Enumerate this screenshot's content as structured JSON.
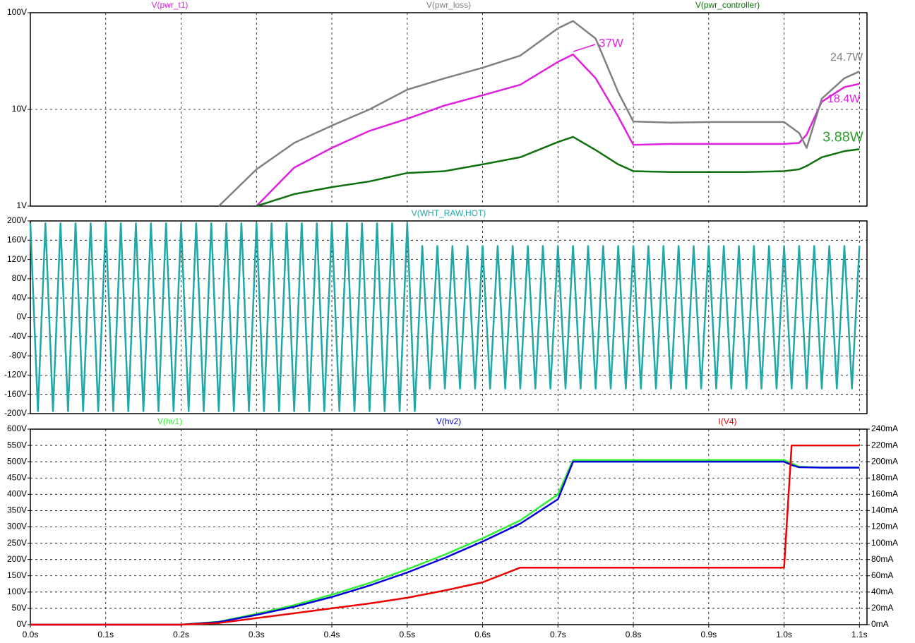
{
  "chart_data": [
    {
      "type": "line",
      "log_y": true,
      "grid": true,
      "x": [
        0.25,
        0.3,
        0.35,
        0.4,
        0.45,
        0.5,
        0.55,
        0.6,
        0.65,
        0.7,
        0.72,
        0.75,
        0.78,
        0.8,
        0.85,
        0.9,
        0.95,
        1.0,
        1.02,
        1.03,
        1.05,
        1.08,
        1.1
      ],
      "series": [
        {
          "name": "V(pwr_t1)",
          "color": "#e020e0",
          "values": [
            null,
            1,
            2.5,
            4,
            6,
            8,
            11,
            14,
            18,
            31,
            37,
            21,
            8.4,
            4.3,
            4.4,
            4.4,
            4.4,
            4.4,
            4.5,
            5.5,
            12,
            17,
            18.4
          ]
        },
        {
          "name": "V(pwr_loss)",
          "color": "#808080",
          "values": [
            1,
            2.4,
            4.5,
            6.8,
            10,
            16,
            21,
            27,
            36,
            69,
            82,
            54,
            15,
            7.5,
            7.3,
            7.4,
            7.4,
            7.4,
            5.7,
            4,
            12.9,
            21,
            24.7
          ]
        },
        {
          "name": "V(pwr_controller)",
          "color": "#107010",
          "values": [
            null,
            1,
            1.33,
            1.57,
            1.8,
            2.2,
            2.3,
            2.7,
            3.2,
            4.6,
            5.2,
            3.8,
            2.7,
            2.3,
            2.25,
            2.25,
            2.25,
            2.3,
            2.4,
            2.6,
            3.2,
            3.7,
            3.88
          ]
        }
      ],
      "xlim": [
        0,
        1.11
      ],
      "ylim": [
        1,
        100
      ],
      "yticks": [
        {
          "value": 1,
          "label": "1V"
        },
        {
          "value": 10,
          "label": "10V"
        },
        {
          "value": 100,
          "label": "100V"
        }
      ],
      "annotations": [
        {
          "text": "37W",
          "color": "#e020e0"
        },
        {
          "text": "24.7W",
          "color": "#808080"
        },
        {
          "text": "18.4W",
          "color": "#e020e0"
        },
        {
          "text": "3.88W",
          "color": "#30a030"
        }
      ]
    },
    {
      "type": "line",
      "grid": true,
      "x": [
        0,
        0.01,
        0.02,
        0.03,
        0.04,
        0.05,
        0.06,
        0.07,
        0.08,
        0.09,
        0.1,
        0.11,
        0.12,
        0.13,
        0.14,
        0.15,
        0.16,
        0.17,
        0.18,
        0.19,
        0.2,
        0.21,
        0.22,
        0.23,
        0.24,
        0.25,
        0.26,
        0.27,
        0.28,
        0.29,
        0.3,
        0.31,
        0.32,
        0.33,
        0.34,
        0.35,
        0.36,
        0.37,
        0.38,
        0.39,
        0.4,
        0.41,
        0.42,
        0.43,
        0.44,
        0.45,
        0.46,
        0.47,
        0.48,
        0.49,
        0.5,
        0.51,
        0.52,
        0.53,
        0.54,
        0.55,
        0.56,
        0.57,
        0.58,
        0.59,
        0.6,
        0.61,
        0.62,
        0.63,
        0.64,
        0.65,
        0.66,
        0.67,
        0.68,
        0.69,
        0.7,
        0.71,
        0.72,
        0.73,
        0.74,
        0.75,
        0.76,
        0.77,
        0.78,
        0.79,
        0.8,
        0.81,
        0.82,
        0.83,
        0.84,
        0.85,
        0.86,
        0.87,
        0.88,
        0.89,
        0.9,
        0.91,
        0.92,
        0.93,
        0.94,
        0.95,
        0.96,
        0.97,
        0.98,
        0.99,
        1.0,
        1.01,
        1.02,
        1.03,
        1.04,
        1.05,
        1.06,
        1.07,
        1.08,
        1.09,
        1.1
      ],
      "series": [
        {
          "name": "V(WHT_RAW,HOT)",
          "color": "#20a8a8",
          "values": [
            195,
            -195,
            195,
            -195,
            195,
            -195,
            195,
            -195,
            195,
            -195,
            195,
            -195,
            195,
            -195,
            195,
            -195,
            195,
            -195,
            195,
            -195,
            195,
            -195,
            195,
            -195,
            195,
            -195,
            195,
            -195,
            195,
            -195,
            195,
            -195,
            195,
            -195,
            195,
            -195,
            195,
            -195,
            195,
            -195,
            195,
            -195,
            195,
            -195,
            195,
            -195,
            195,
            -195,
            195,
            -195,
            195,
            -195,
            148,
            -148,
            148,
            -148,
            148,
            -148,
            148,
            -148,
            148,
            -148,
            148,
            -148,
            148,
            -148,
            148,
            -148,
            148,
            -148,
            148,
            -148,
            148,
            -148,
            148,
            -148,
            148,
            -148,
            148,
            -148,
            148,
            -148,
            148,
            -148,
            148,
            -148,
            148,
            -148,
            148,
            -148,
            148,
            -148,
            148,
            -148,
            148,
            -148,
            148,
            -148,
            148,
            -148,
            148,
            -148,
            148,
            -148,
            148,
            -148,
            148,
            -148,
            148,
            -148,
            148
          ]
        }
      ],
      "xlim": [
        0,
        1.11
      ],
      "ylim": [
        -200,
        200
      ],
      "yticks": [
        {
          "value": -200,
          "label": "-200V"
        },
        {
          "value": -160,
          "label": "-160V"
        },
        {
          "value": -120,
          "label": "-120V"
        },
        {
          "value": -80,
          "label": "-80V"
        },
        {
          "value": -40,
          "label": "-40V"
        },
        {
          "value": 0,
          "label": "0V"
        },
        {
          "value": 40,
          "label": "40V"
        },
        {
          "value": 80,
          "label": "80V"
        },
        {
          "value": 120,
          "label": "120V"
        },
        {
          "value": 160,
          "label": "160V"
        },
        {
          "value": 200,
          "label": "200V"
        }
      ]
    },
    {
      "type": "line",
      "grid": true,
      "x": [
        0,
        0.2,
        0.25,
        0.3,
        0.35,
        0.4,
        0.45,
        0.5,
        0.55,
        0.6,
        0.65,
        0.7,
        0.72,
        0.75,
        0.8,
        0.9,
        1.0,
        1.01,
        1.02,
        1.05,
        1.1
      ],
      "series": [
        {
          "name": "V(hv1)",
          "color": "#30ee30",
          "values": [
            0,
            0,
            9,
            33,
            60,
            92,
            128,
            170,
            215,
            265,
            320,
            400,
            505,
            505,
            505,
            505,
            505,
            495,
            485,
            482,
            482
          ]
        },
        {
          "name": "V(hv2)",
          "color": "#0000dd",
          "values": [
            0,
            0,
            8,
            30,
            55,
            85,
            120,
            160,
            205,
            255,
            310,
            385,
            500,
            500,
            500,
            500,
            500,
            490,
            483,
            482,
            482
          ]
        },
        {
          "name": "I(V4)",
          "color": "#ee0000",
          "axis": "y2",
          "values": [
            0,
            0,
            2,
            8,
            14,
            20,
            26,
            33,
            42,
            52,
            70,
            70,
            70,
            70,
            70,
            70,
            70,
            220,
            220,
            220,
            220
          ]
        }
      ],
      "xlim": [
        0,
        1.11
      ],
      "ylim": [
        0,
        600
      ],
      "y2lim": [
        0,
        240
      ],
      "xticks": [
        {
          "value": 0,
          "label": "0.0s"
        },
        {
          "value": 0.1,
          "label": "0.1s"
        },
        {
          "value": 0.2,
          "label": "0.2s"
        },
        {
          "value": 0.3,
          "label": "0.3s"
        },
        {
          "value": 0.4,
          "label": "0.4s"
        },
        {
          "value": 0.5,
          "label": "0.5s"
        },
        {
          "value": 0.6,
          "label": "0.6s"
        },
        {
          "value": 0.7,
          "label": "0.7s"
        },
        {
          "value": 0.8,
          "label": "0.8s"
        },
        {
          "value": 0.9,
          "label": "0.9s"
        },
        {
          "value": 1.0,
          "label": "1.0s"
        },
        {
          "value": 1.1,
          "label": "1.1s"
        }
      ],
      "yticks": [
        {
          "value": 0,
          "label": "0V"
        },
        {
          "value": 50,
          "label": "50V"
        },
        {
          "value": 100,
          "label": "100V"
        },
        {
          "value": 150,
          "label": "150V"
        },
        {
          "value": 200,
          "label": "200V"
        },
        {
          "value": 250,
          "label": "250V"
        },
        {
          "value": 300,
          "label": "300V"
        },
        {
          "value": 350,
          "label": "350V"
        },
        {
          "value": 400,
          "label": "400V"
        },
        {
          "value": 450,
          "label": "450V"
        },
        {
          "value": 500,
          "label": "500V"
        },
        {
          "value": 550,
          "label": "550V"
        },
        {
          "value": 600,
          "label": "600V"
        }
      ],
      "y2ticks": [
        {
          "value": 0,
          "label": "0mA"
        },
        {
          "value": 20,
          "label": "20mA"
        },
        {
          "value": 40,
          "label": "40mA"
        },
        {
          "value": 60,
          "label": "60mA"
        },
        {
          "value": 80,
          "label": "80mA"
        },
        {
          "value": 100,
          "label": "100mA"
        },
        {
          "value": 120,
          "label": "120mA"
        },
        {
          "value": 140,
          "label": "140mA"
        },
        {
          "value": 160,
          "label": "160mA"
        },
        {
          "value": 180,
          "label": "180mA"
        },
        {
          "value": 200,
          "label": "200mA"
        },
        {
          "value": 220,
          "label": "220mA"
        },
        {
          "value": 240,
          "label": "240mA"
        }
      ]
    }
  ]
}
